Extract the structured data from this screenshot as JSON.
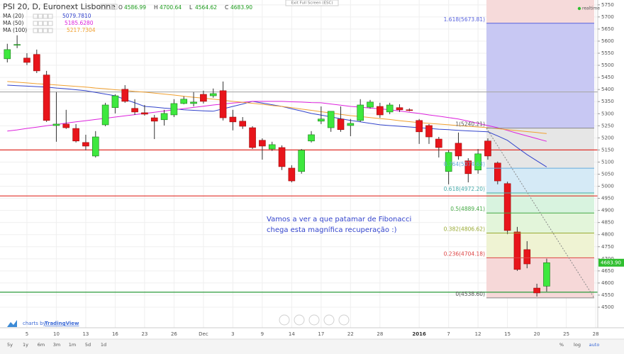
{
  "chart_data": {
    "type": "candlestick",
    "title": "PSI 20, D, Euronext Lisbonne",
    "ohlc_fields": [
      {
        "key": "O",
        "value": "4586.99"
      },
      {
        "key": "H",
        "value": "4700.64"
      },
      {
        "key": "L",
        "value": "4564.62"
      },
      {
        "key": "C",
        "value": "4683.90"
      }
    ],
    "categories": [
      null,
      null,
      "5",
      null,
      null,
      "10",
      null,
      null,
      "13",
      null,
      null,
      "16",
      null,
      null,
      "23",
      null,
      null,
      "26",
      null,
      null,
      "Dec",
      null,
      null,
      "3",
      null,
      null,
      "9",
      null,
      null,
      "14",
      null,
      null,
      "17",
      null,
      null,
      "22",
      null,
      null,
      "28",
      null,
      null,
      null,
      "2016",
      null,
      null,
      "7",
      null,
      null,
      "12",
      null,
      null,
      "15",
      null,
      null,
      "20",
      null,
      null,
      "25",
      null,
      null,
      "28"
    ],
    "open": [
      5527,
      5583,
      5530,
      5545,
      5460,
      5251,
      5257,
      5239,
      5181,
      5125,
      5254,
      5325,
      5401,
      5322,
      5304,
      5283,
      5275,
      5295,
      5342,
      5342,
      5380,
      5374,
      5395,
      5286,
      5269,
      5242,
      5190,
      5154,
      5160,
      5075,
      5061,
      5187,
      5269,
      5242,
      5278,
      5251,
      5272,
      5327,
      5330,
      5307,
      5325,
      5316,
      5272,
      5251,
      5195,
      5061,
      5178,
      5105,
      5067,
      5187,
      5096,
      5011,
      4811,
      4738,
      4579,
      4586.99,
      null,
      null,
      null,
      null,
      null
    ],
    "high": [
      5589,
      5624,
      5550,
      5565,
      5477,
      5389,
      5316,
      5257,
      5213,
      5228,
      5345,
      5380,
      5418,
      5360,
      5336,
      5295,
      5316,
      5360,
      5372,
      5389,
      5395,
      5404,
      5433,
      5316,
      5286,
      5248,
      5198,
      5184,
      5169,
      5087,
      5154,
      5228,
      5330,
      5310,
      5330,
      5278,
      5360,
      5357,
      5345,
      5345,
      5339,
      5322,
      5278,
      5257,
      5204,
      5149,
      5222,
      5116,
      5154,
      5198,
      5102,
      5019,
      4832,
      4773,
      4597,
      4700.64,
      null,
      null,
      null,
      null,
      null
    ],
    "low": [
      5512,
      5571,
      5501,
      5468,
      5266,
      5184,
      5237,
      5181,
      5149,
      5119,
      5248,
      5301,
      5345,
      5295,
      5292,
      5195,
      5251,
      5286,
      5339,
      5330,
      5342,
      5366,
      5272,
      5231,
      5237,
      5154,
      5110,
      5146,
      5067,
      5016,
      5052,
      5181,
      5257,
      5225,
      5225,
      5207,
      5266,
      5321,
      5283,
      5298,
      5307,
      5310,
      5175,
      5175,
      5119,
      5008,
      5110,
      5016,
      5052,
      5110,
      5008,
      4802,
      4650,
      4661,
      4544,
      4564.62,
      null,
      null,
      null,
      null,
      null
    ],
    "close": [
      5565,
      5586,
      5512,
      5477,
      5272,
      5257,
      5242,
      5187,
      5166,
      5204,
      5336,
      5374,
      5351,
      5307,
      5298,
      5269,
      5301,
      5342,
      5360,
      5348,
      5351,
      5383,
      5283,
      5266,
      5248,
      5160,
      5166,
      5172,
      5081,
      5022,
      5149,
      5213,
      5278,
      5310,
      5234,
      5260,
      5336,
      5348,
      5295,
      5336,
      5316,
      5313,
      5225,
      5204,
      5160,
      5140,
      5125,
      5052,
      5134,
      5125,
      5022,
      4817,
      4656,
      4679,
      4559,
      4683.9,
      null,
      null,
      null,
      null,
      null
    ],
    "up_color": "#3ee83e",
    "down_color": "#e8151b",
    "last_price_label": "4683.90",
    "series": [
      {
        "name": "MA (20)",
        "color": "#3344cc",
        "last_label": "5079.7810",
        "values": [
          5418,
          5416,
          5414,
          5412,
          5410,
          5406,
          5403,
          5399,
          5395,
          5388,
          5381,
          5374,
          5359,
          5345,
          5330,
          5327,
          5323,
          5320,
          5316,
          5314,
          5312,
          5310,
          5320,
          5330,
          5340,
          5351,
          5344,
          5337,
          5330,
          5320,
          5311,
          5301,
          5294,
          5287,
          5279,
          5272,
          5266,
          5260,
          5254,
          5251,
          5248,
          5245,
          5242,
          5239,
          5236,
          5234,
          5231,
          5229,
          5227,
          5225,
          5208,
          5190,
          5160,
          5131,
          5105,
          5079.781,
          null,
          null,
          null,
          null,
          null
        ]
      },
      {
        "name": "MA (50)",
        "color": "#dd22dd",
        "last_label": "5185.6280",
        "values": [
          5228,
          5233,
          5239,
          5244,
          5250,
          5255,
          5261,
          5266,
          5271,
          5276,
          5281,
          5286,
          5291,
          5296,
          5301,
          5306,
          5311,
          5316,
          5321,
          5326,
          5331,
          5336,
          5340,
          5344,
          5347,
          5351,
          5351,
          5351,
          5351,
          5349,
          5348,
          5346,
          5345,
          5340,
          5335,
          5330,
          5327,
          5323,
          5320,
          5316,
          5311,
          5306,
          5301,
          5295,
          5290,
          5284,
          5278,
          5269,
          5260,
          5251,
          5242,
          5231,
          5219,
          5208,
          5197,
          5185.628,
          null,
          null,
          null,
          null,
          null
        ]
      },
      {
        "name": "MA (100)",
        "color": "#f0a030",
        "last_label": "5217.7304",
        "values": [
          5433,
          5430,
          5427,
          5424,
          5422,
          5419,
          5416,
          5413,
          5410,
          5406,
          5403,
          5399,
          5396,
          5392,
          5389,
          5385,
          5381,
          5377,
          5372,
          5368,
          5364,
          5360,
          5356,
          5351,
          5347,
          5343,
          5339,
          5334,
          5330,
          5325,
          5319,
          5314,
          5308,
          5303,
          5297,
          5292,
          5288,
          5284,
          5280,
          5276,
          5271,
          5267,
          5263,
          5260,
          5257,
          5254,
          5251,
          5248,
          5245,
          5242,
          5238,
          5234,
          5230,
          5226,
          5222,
          5217.7304,
          null,
          null,
          null,
          null,
          null
        ]
      }
    ],
    "fibonacci": {
      "top_color": "#f6dada",
      "levels": [
        {
          "value": 5673.81,
          "label": "1.618(5673.81)",
          "line_color": "#5560dd",
          "color": "#c8c8f3"
        },
        {
          "value": 5240.21,
          "label": "1(5240.21)",
          "line_color": "#888888",
          "color": "#e6e6e6"
        },
        {
          "value": 5074.63,
          "label": "0.764(5074.63)",
          "line_color": "#66aadd",
          "color": "#d5eaf6"
        },
        {
          "value": 4972.2,
          "label": "0.618(4972.20)",
          "line_color": "#44aaaa",
          "color": "#d8f3df"
        },
        {
          "value": 4889.41,
          "label": "0.5(4889.41)",
          "line_color": "#44aa44",
          "color": "#e3f5da"
        },
        {
          "value": 4806.62,
          "label": "0.382(4806.62)",
          "line_color": "#99aa33",
          "color": "#eff3d3"
        },
        {
          "value": 4704.18,
          "label": "0.236(4704.18)",
          "line_color": "#dd4444",
          "color": "#f6d8d8"
        },
        {
          "value": 4538.6,
          "label": "0(4538.60)",
          "line_color": "#888888"
        }
      ]
    },
    "hlines": [
      {
        "value": 5390,
        "color": "#aaaaaa"
      },
      {
        "value": 5150,
        "color": "#e0302a"
      },
      {
        "value": 4960,
        "color": "#e0302a"
      },
      {
        "value": 4562,
        "color": "#2a9a3a"
      }
    ],
    "annotation": {
      "lines": [
        "Vamos a ver a que patamar de Fibonacci",
        "chega esta magnífica recuperação :)"
      ],
      "color": "#3344cc"
    },
    "ylim": [
      4415,
      5770
    ],
    "yticks": [
      4500,
      4550,
      4600,
      4650,
      4700,
      4750,
      4800,
      4850,
      4900,
      4950,
      5000,
      5050,
      5100,
      5150,
      5200,
      5250,
      5300,
      5350,
      5400,
      5450,
      5500,
      5550,
      5600,
      5650,
      5700,
      5750
    ],
    "grid": true
  },
  "ui": {
    "exit_fullscreen": "Exit Full Screen (ESC)",
    "realtime": "realtime",
    "branding_prefix": "charts by",
    "branding_name": "TradingView",
    "ranges": [
      "5y",
      "1y",
      "6m",
      "3m",
      "1m",
      "5d",
      "1d"
    ],
    "scale_options": [
      "%",
      "log",
      "auto"
    ]
  }
}
